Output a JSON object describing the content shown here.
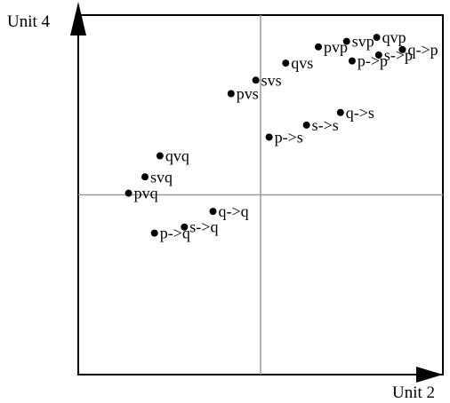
{
  "chart_data": {
    "type": "scatter",
    "xlabel": "Unit 2",
    "ylabel": "Unit 4",
    "xlim": [
      -1,
      1
    ],
    "ylim": [
      -1,
      1
    ],
    "grid": false,
    "reference_lines": {
      "x": 0,
      "y": 0
    },
    "points": [
      {
        "label": "qvp",
        "x": 0.637,
        "y": 0.876
      },
      {
        "label": "svp",
        "x": 0.472,
        "y": 0.854
      },
      {
        "label": "pvp",
        "x": 0.317,
        "y": 0.823
      },
      {
        "label": "q->p",
        "x": 0.778,
        "y": 0.808
      },
      {
        "label": "s->p",
        "x": 0.648,
        "y": 0.778
      },
      {
        "label": "p->p",
        "x": 0.502,
        "y": 0.745
      },
      {
        "label": "qvs",
        "x": 0.138,
        "y": 0.733
      },
      {
        "label": "svs",
        "x": -0.026,
        "y": 0.638
      },
      {
        "label": "pvs",
        "x": -0.162,
        "y": 0.563
      },
      {
        "label": "q->s",
        "x": 0.438,
        "y": 0.458
      },
      {
        "label": "s->s",
        "x": 0.252,
        "y": 0.388
      },
      {
        "label": "p->s",
        "x": 0.047,
        "y": 0.321
      },
      {
        "label": "qvq",
        "x": -0.552,
        "y": 0.217
      },
      {
        "label": "svq",
        "x": -0.634,
        "y": 0.1
      },
      {
        "label": "pvq",
        "x": -0.724,
        "y": 0.009
      },
      {
        "label": "q->q",
        "x": -0.261,
        "y": -0.092
      },
      {
        "label": "s->q",
        "x": -0.418,
        "y": -0.179
      },
      {
        "label": "p->q",
        "x": -0.582,
        "y": -0.213
      }
    ]
  }
}
